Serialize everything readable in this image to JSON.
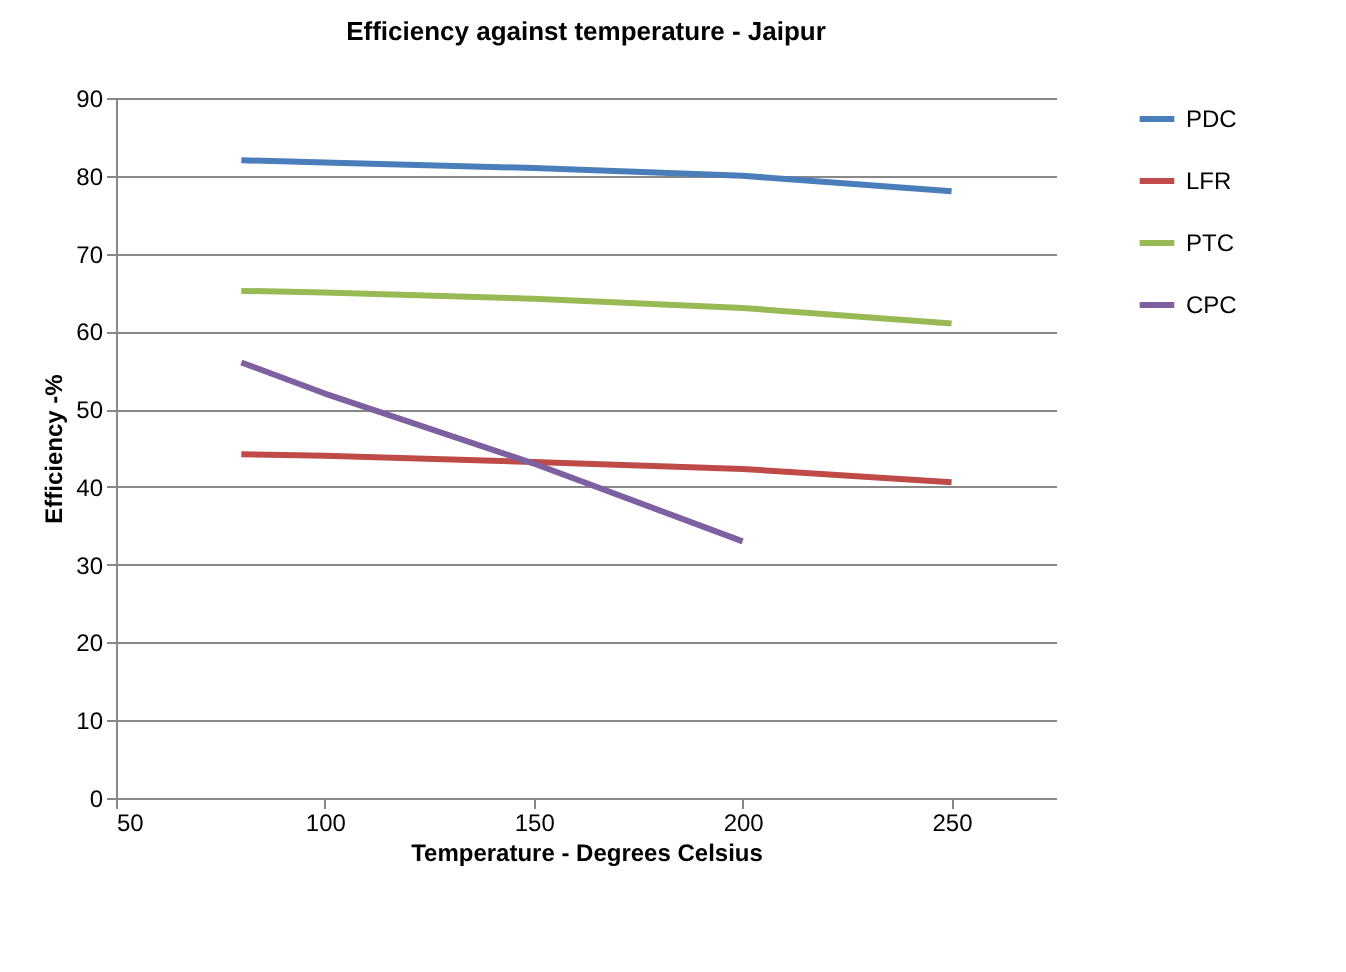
{
  "chart_data": {
    "type": "line",
    "title": "Efficiency against temperature - Jaipur",
    "xlabel": "Temperature  - Degrees Celsius",
    "ylabel": "Efficiency -%",
    "x": [
      80,
      100,
      150,
      200,
      250
    ],
    "series": [
      {
        "name": "PDC",
        "color": "#4a7ebb",
        "values": [
          82,
          81.7,
          81,
          80,
          78
        ]
      },
      {
        "name": "LFR",
        "color": "#be4b48",
        "values": [
          44.2,
          44,
          43.2,
          42.3,
          40.6
        ]
      },
      {
        "name": "PTC",
        "color": "#98b954",
        "values": [
          65.2,
          65,
          64.2,
          63,
          61
        ]
      },
      {
        "name": "CPC",
        "color": "#7d60a0",
        "values": [
          56,
          52,
          43,
          33,
          null
        ]
      }
    ],
    "xlim": [
      50,
      275
    ],
    "xticks": [
      50,
      100,
      150,
      200,
      250
    ],
    "ylim": [
      0,
      90
    ],
    "yticks": [
      0,
      10,
      20,
      30,
      40,
      50,
      60,
      70,
      80,
      90
    ],
    "grid": "y",
    "legend": "right"
  }
}
